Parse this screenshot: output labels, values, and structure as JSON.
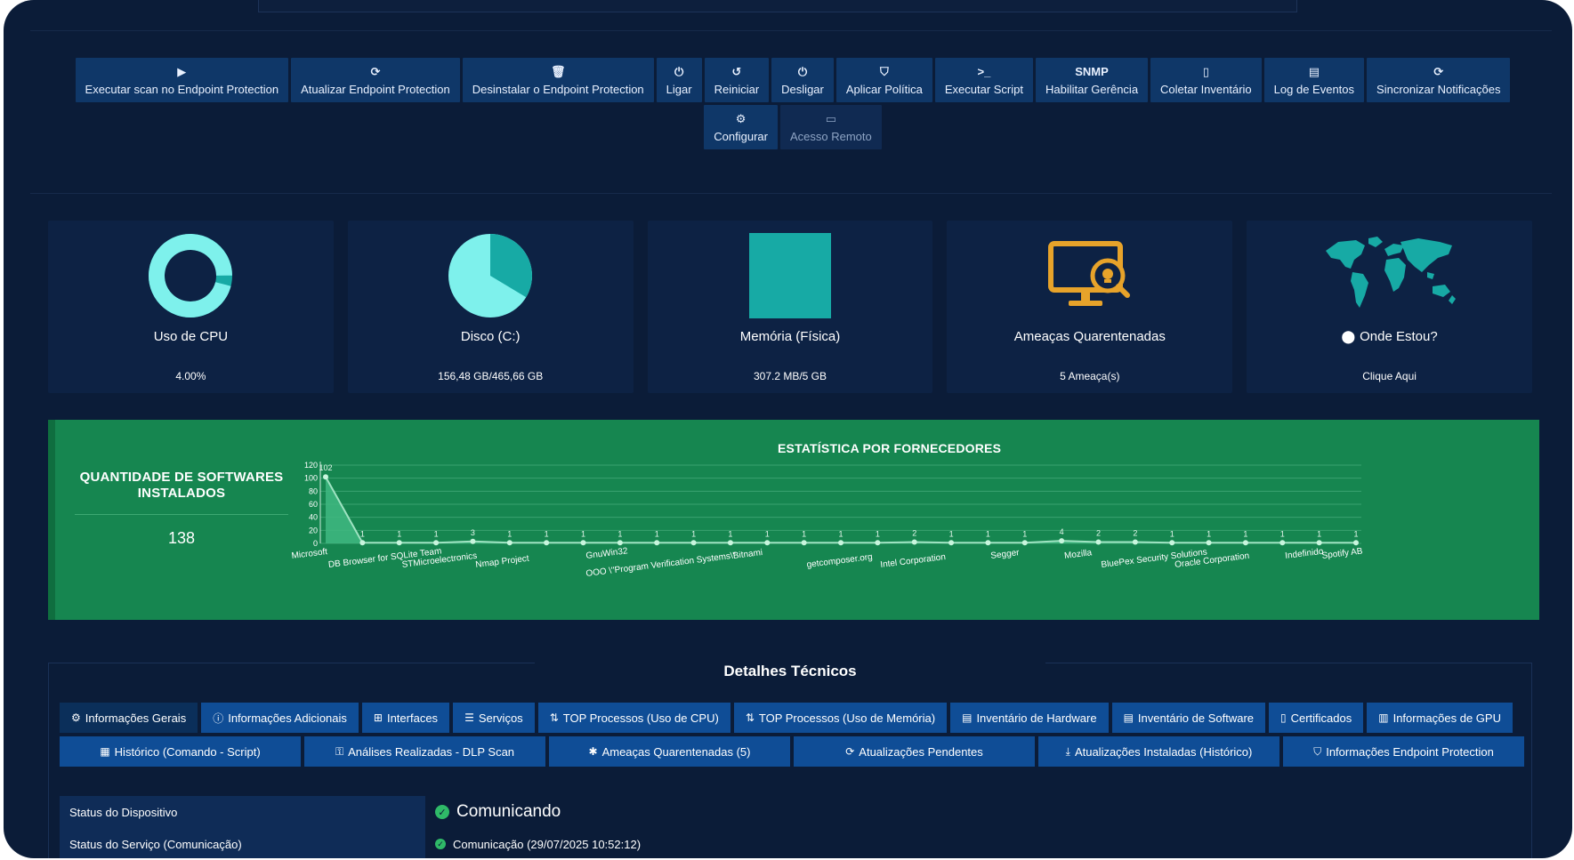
{
  "toolbar": {
    "row1": [
      {
        "icon": "play-icon",
        "glyph": "▶",
        "label": "Executar scan no Endpoint Protection"
      },
      {
        "icon": "refresh-icon",
        "glyph": "⟳",
        "label": "Atualizar Endpoint Protection"
      },
      {
        "icon": "trash-icon",
        "glyph": "🗑",
        "label": "Desinstalar o Endpoint Protection"
      },
      {
        "icon": "power-icon",
        "glyph": "⏻",
        "label": "Ligar"
      },
      {
        "icon": "restart-icon",
        "glyph": "↺",
        "label": "Reiniciar"
      },
      {
        "icon": "power-off-icon",
        "glyph": "⏻",
        "label": "Desligar"
      },
      {
        "icon": "shield-icon",
        "glyph": "⛉",
        "label": "Aplicar Política"
      },
      {
        "icon": "terminal-icon",
        "glyph": ">_",
        "label": "Executar Script"
      },
      {
        "icon": "snmp-text-icon",
        "glyph": "SNMP",
        "label": "Habilitar Gerência"
      },
      {
        "icon": "file-icon",
        "glyph": "▯",
        "label": "Coletar Inventário"
      },
      {
        "icon": "document-icon",
        "glyph": "▤",
        "label": "Log de Eventos"
      },
      {
        "icon": "sync-icon",
        "glyph": "⟳",
        "label": "Sincronizar Notificações"
      }
    ],
    "row2": [
      {
        "icon": "cogs-icon",
        "glyph": "⚙",
        "label": "Configurar",
        "disabled": false
      },
      {
        "icon": "monitor-icon",
        "glyph": "▭",
        "label": "Acesso Remoto",
        "disabled": true
      }
    ]
  },
  "cards": {
    "cpu": {
      "title": "Uso de CPU",
      "value": "4.00%",
      "percent": 4
    },
    "disk": {
      "title": "Disco (C:)",
      "value": "156,48 GB/465,66 GB",
      "used": 156.48,
      "total": 465.66
    },
    "memory": {
      "title": "Memória (Física)",
      "value": "307.2 MB/5 GB"
    },
    "threats": {
      "title": "Ameaças Quarentenadas",
      "value": "5 Ameaça(s)",
      "icon": "quarantine-monitor-icon"
    },
    "location": {
      "title": "Onde Estou?",
      "value": "Clique Aqui",
      "icon": "map-marker-icon"
    }
  },
  "stats": {
    "left_title": "QUANTIDADE DE SOFTWARES INSTALADOS",
    "left_value": "138",
    "chart_title": "ESTATÍSTICA POR FORNECEDORES"
  },
  "chart_data": {
    "type": "area",
    "title": "ESTATÍSTICA POR FORNECEDORES",
    "ylim": [
      0,
      120
    ],
    "yticks": [
      0,
      20,
      40,
      60,
      80,
      100,
      120
    ],
    "grid": true,
    "values": [
      102,
      1,
      1,
      1,
      3,
      1,
      1,
      1,
      1,
      1,
      1,
      1,
      1,
      1,
      1,
      1,
      2,
      1,
      1,
      1,
      4,
      2,
      2,
      1,
      1,
      1,
      1,
      1,
      1
    ],
    "x_labels": [
      {
        "index": 0,
        "text": "Microsoft",
        "row": 0
      },
      {
        "index": 1,
        "text": "DB Browser for SQLite Team",
        "row": 1
      },
      {
        "index": 3,
        "text": "STMicroelectronics",
        "row": 1
      },
      {
        "index": 5,
        "text": "Nmap Project",
        "row": 1
      },
      {
        "index": 8,
        "text": "GnuWin32",
        "row": 0
      },
      {
        "index": 8,
        "text": "OOO \\\"Program Verification Systems\\\"",
        "row": 2
      },
      {
        "index": 12,
        "text": "Bitnami",
        "row": 0
      },
      {
        "index": 14,
        "text": "getcomposer.org",
        "row": 1
      },
      {
        "index": 16,
        "text": "Intel Corporation",
        "row": 1
      },
      {
        "index": 19,
        "text": "Segger",
        "row": 0
      },
      {
        "index": 21,
        "text": "Mozilla",
        "row": 0
      },
      {
        "index": 22,
        "text": "BluePex Security Solutions",
        "row": 1
      },
      {
        "index": 24,
        "text": "Oracle Corporation",
        "row": 1
      },
      {
        "index": 27,
        "text": "Indefinido",
        "row": 0
      },
      {
        "index": 28,
        "text": "Spotify AB",
        "row": 0
      }
    ]
  },
  "details": {
    "title": "Detalhes Técnicos",
    "tabs_row1": [
      {
        "icon": "gear-icon",
        "glyph": "⚙",
        "label": "Informações Gerais",
        "active": true
      },
      {
        "icon": "info-icon",
        "glyph": "ⓘ",
        "label": "Informações Adicionais"
      },
      {
        "icon": "sitemap-icon",
        "glyph": "⊞",
        "label": "Interfaces"
      },
      {
        "icon": "list-icon",
        "glyph": "☰",
        "label": "Serviços"
      },
      {
        "icon": "sort-icon",
        "glyph": "⇅",
        "label": "TOP Processos (Uso de CPU)"
      },
      {
        "icon": "sort-icon",
        "glyph": "⇅",
        "label": "TOP Processos (Uso de Memória)"
      },
      {
        "icon": "file-icon",
        "glyph": "▤",
        "label": "Inventário de Hardware"
      },
      {
        "icon": "file-icon",
        "glyph": "▤",
        "label": "Inventário de Software"
      },
      {
        "icon": "certificate-icon",
        "glyph": "▯",
        "label": "Certificados"
      },
      {
        "icon": "bar-chart-icon",
        "glyph": "▥",
        "label": "Informações de GPU"
      }
    ],
    "tabs_row2": [
      {
        "icon": "calendar-icon",
        "glyph": "▦",
        "label": "Histórico (Comando - Script)"
      },
      {
        "icon": "user-lock-icon",
        "glyph": "⚿",
        "label": "Análises Realizadas - DLP Scan"
      },
      {
        "icon": "bug-icon",
        "glyph": "✱",
        "label": "Ameaças Quarentenadas (5)"
      },
      {
        "icon": "refresh-icon",
        "glyph": "⟳",
        "label": "Atualizações Pendentes"
      },
      {
        "icon": "download-icon",
        "glyph": "⤓",
        "label": "Atualizações Instaladas (Histórico)"
      },
      {
        "icon": "shield-icon",
        "glyph": "⛉",
        "label": "Informações Endpoint Protection"
      }
    ],
    "status_rows": [
      {
        "key": "Status do Dispositivo",
        "value": "Comunicando",
        "size": "big"
      },
      {
        "key": "Status do Serviço (Comunicação)",
        "value": "Comunicação (29/07/2025 10:52:12)",
        "size": "small"
      }
    ]
  },
  "colors": {
    "background": "#0b1c38",
    "button": "#0f3768",
    "card": "#0d2244",
    "teal": "#17aaa5",
    "teal_light": "#7ef1ec",
    "green_panel": "#168650",
    "tab": "#0f4d96",
    "status_ok": "#2fba68",
    "threat_icon": "#e7a32a"
  }
}
